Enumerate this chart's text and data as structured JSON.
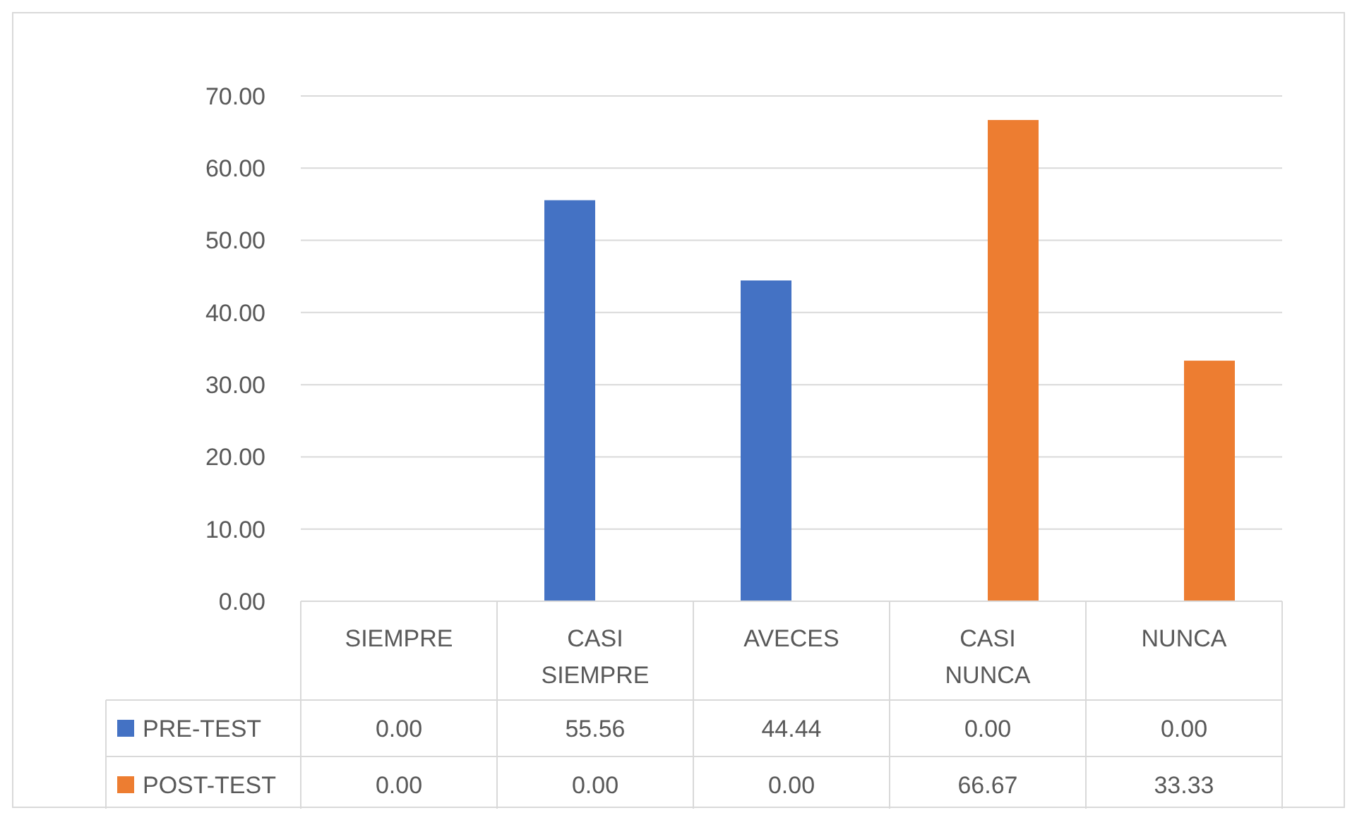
{
  "chart_data": {
    "type": "bar",
    "categories": [
      "SIEMPRE",
      "CASI SIEMPRE",
      "AVECES",
      "CASI NUNCA",
      "NUNCA"
    ],
    "series": [
      {
        "name": "PRE-TEST",
        "color": "#4472c4",
        "values": [
          0,
          55.56,
          44.44,
          0,
          0
        ],
        "value_labels": [
          "0.00",
          "55.56",
          "44.44",
          "0.00",
          "0.00"
        ]
      },
      {
        "name": "POST-TEST",
        "color": "#ed7d31",
        "values": [
          0,
          0,
          0,
          66.67,
          33.33
        ],
        "value_labels": [
          "0.00",
          "0.00",
          "0.00",
          "66.67",
          "33.33"
        ]
      }
    ],
    "ylim": [
      0,
      70
    ],
    "yticks": [
      {
        "value": 0,
        "label": "0.00"
      },
      {
        "value": 10,
        "label": "10.00"
      },
      {
        "value": 20,
        "label": "20.00"
      },
      {
        "value": 30,
        "label": "30.00"
      },
      {
        "value": 40,
        "label": "40.00"
      },
      {
        "value": 50,
        "label": "50.00"
      },
      {
        "value": 60,
        "label": "60.00"
      },
      {
        "value": 70,
        "label": "70.00"
      }
    ],
    "grid": "y",
    "legend": "bottom"
  }
}
